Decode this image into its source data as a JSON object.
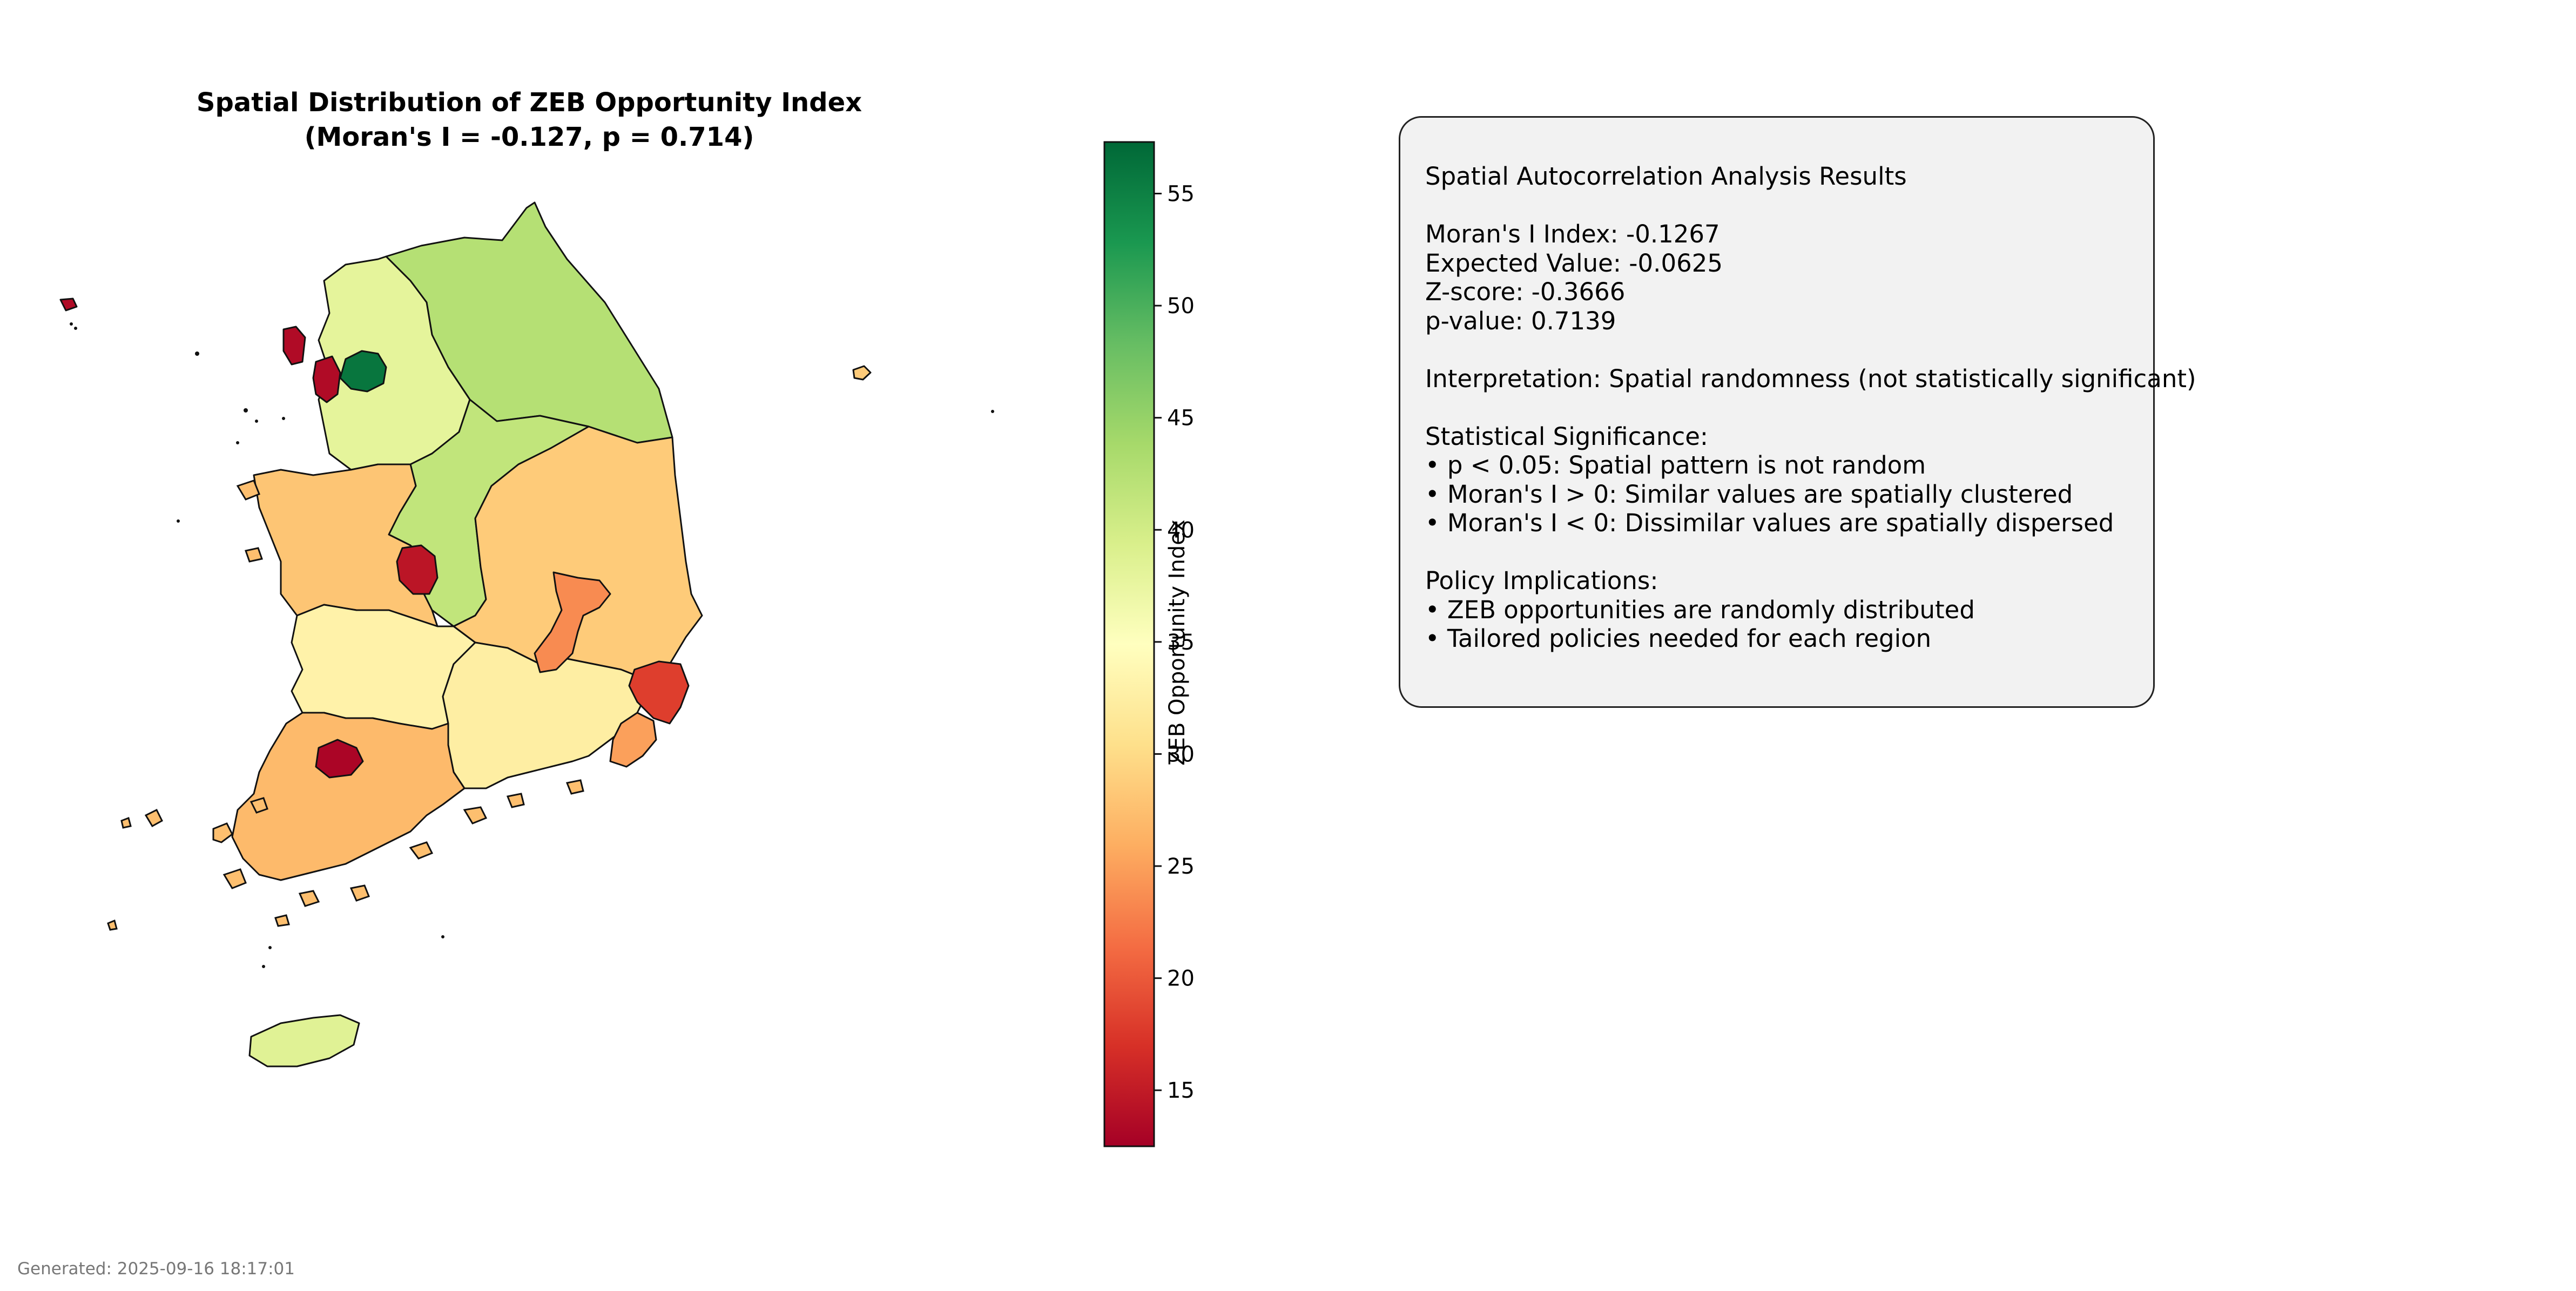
{
  "title_line1": "Spatial Distribution of ZEB Opportunity Index",
  "title_line2": "(Moran's I = -0.127, p = 0.714)",
  "colorbar": {
    "label": "ZEB Opportunity Index",
    "min": 12.5,
    "max": 57.3,
    "ticks": [
      "15",
      "20",
      "25",
      "30",
      "35",
      "40",
      "45",
      "50",
      "55"
    ],
    "colormap": "RdYlGn",
    "stops": [
      "#a50026",
      "#d73027",
      "#f46d43",
      "#fdae61",
      "#fee08b",
      "#ffffbf",
      "#d9ef8b",
      "#a6d96a",
      "#66bd63",
      "#1a9850",
      "#006837"
    ]
  },
  "regions": [
    {
      "name": "Gangwon",
      "value": 42.5
    },
    {
      "name": "Gyeonggi",
      "value": 38.0
    },
    {
      "name": "Seoul",
      "value": 56.0
    },
    {
      "name": "Incheon",
      "value": 13.5
    },
    {
      "name": "Chungbuk",
      "value": 41.5
    },
    {
      "name": "Chungnam",
      "value": 28.0
    },
    {
      "name": "Sejong",
      "value": 14.5
    },
    {
      "name": "Gyeongbuk",
      "value": 28.5
    },
    {
      "name": "Daegu",
      "value": 23.5
    },
    {
      "name": "Ulsan",
      "value": 18.0
    },
    {
      "name": "Jeonbuk",
      "value": 33.0
    },
    {
      "name": "Gyeongnam",
      "value": 32.5
    },
    {
      "name": "Busan",
      "value": 25.0
    },
    {
      "name": "Jeonnam",
      "value": 27.0
    },
    {
      "name": "Gwangju",
      "value": 13.0
    },
    {
      "name": "Jeju",
      "value": 38.5
    },
    {
      "name": "Ulleungdo",
      "value": 28.5
    }
  ],
  "info": {
    "heading": "Spatial Autocorrelation Analysis Results",
    "morans_i": "Moran's I Index: -0.1267",
    "expected": "Expected Value: -0.0625",
    "zscore": "Z-score: -0.3666",
    "pvalue": "p-value: 0.7139",
    "interpretation": "Interpretation: Spatial randomness (not statistically significant)",
    "sig_heading": "Statistical Significance:",
    "sig_1": "• p < 0.05: Spatial pattern is not random",
    "sig_2": "• Moran's I > 0: Similar values are spatially clustered",
    "sig_3": "• Moran's I < 0: Dissimilar values are spatially dispersed",
    "policy_heading": "Policy Implications:",
    "policy_1": "• ZEB opportunities are randomly distributed",
    "policy_2": "• Tailored policies needed for each region"
  },
  "footer": "Generated: 2025-09-16 18:17:01"
}
